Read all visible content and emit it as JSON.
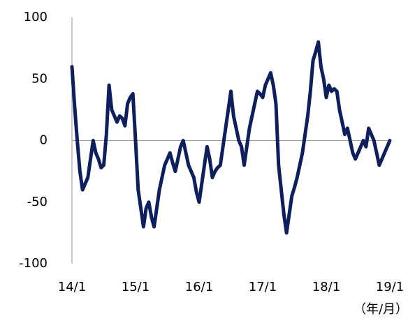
{
  "chart_data": {
    "type": "line",
    "unit_label": "（年/月）",
    "categories": [
      "14/1",
      null,
      null,
      null,
      null,
      null,
      null,
      null,
      null,
      null,
      null,
      null,
      null,
      null,
      null,
      null,
      null,
      null,
      null,
      null,
      null,
      null,
      null,
      null,
      "15/1",
      null,
      null,
      null,
      null,
      null,
      null,
      null,
      null,
      null,
      null,
      null,
      null,
      null,
      null,
      null,
      null,
      null,
      null,
      null,
      null,
      null,
      null,
      null,
      "16/1",
      null,
      null,
      null,
      null,
      null,
      null,
      null,
      null,
      null,
      null,
      null,
      null,
      null,
      null,
      null,
      null,
      null,
      null,
      null,
      null,
      null,
      null,
      null,
      "17/1",
      null,
      null,
      null,
      null,
      null,
      null,
      null,
      null,
      null,
      null,
      null,
      null,
      null,
      null,
      null,
      null,
      null,
      null,
      null,
      null,
      null,
      null,
      null,
      "18/1",
      null,
      null,
      null,
      null,
      null,
      null,
      null,
      null,
      null,
      null,
      null,
      null,
      null,
      null,
      null,
      null,
      null,
      null,
      null,
      null,
      null,
      null,
      null,
      "19/1"
    ],
    "values": [
      60,
      28,
      0,
      -25,
      -40,
      -35,
      -30,
      -15,
      0,
      -10,
      -15,
      -22,
      -20,
      5,
      45,
      25,
      20,
      15,
      20,
      18,
      12,
      30,
      35,
      38,
      0,
      -40,
      -55,
      -70,
      -55,
      -50,
      -62,
      -70,
      -55,
      -40,
      -30,
      -20,
      -15,
      -10,
      -18,
      -25,
      -15,
      -5,
      0,
      -10,
      -20,
      -25,
      -30,
      -42,
      -50,
      -35,
      -20,
      -5,
      -15,
      -30,
      -25,
      -22,
      -20,
      -5,
      10,
      25,
      40,
      20,
      10,
      0,
      -5,
      -20,
      -5,
      10,
      20,
      30,
      40,
      38,
      35,
      45,
      50,
      55,
      45,
      30,
      -20,
      -40,
      -60,
      -75,
      -60,
      -45,
      -38,
      -30,
      -20,
      -10,
      5,
      20,
      40,
      65,
      72,
      80,
      60,
      50,
      35,
      45,
      40,
      42,
      40,
      25,
      15,
      5,
      10,
      0,
      -10,
      -15,
      -10,
      -5,
      0,
      -5,
      10,
      5,
      0,
      -10,
      -20,
      -15,
      -10,
      -5,
      0
    ],
    "color": "#0d1f5c",
    "ylim": [
      -100,
      100
    ],
    "yticks": [
      -100,
      -50,
      0,
      50,
      100
    ],
    "grid": false
  }
}
